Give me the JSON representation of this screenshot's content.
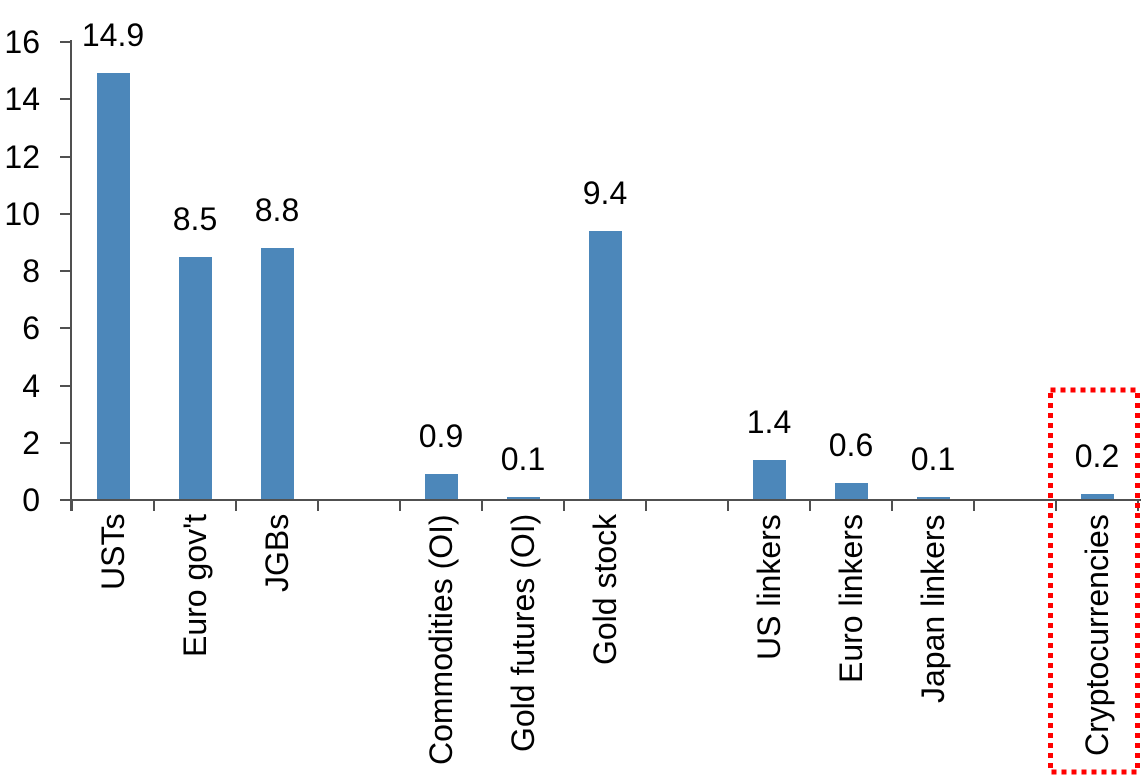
{
  "chart_data": {
    "type": "bar",
    "title": "",
    "xlabel": "",
    "ylabel": "",
    "grid": false,
    "legend": null,
    "ylim": [
      0,
      16
    ],
    "y_ticks": [
      0,
      2,
      4,
      6,
      8,
      10,
      12,
      14,
      16
    ],
    "bar_color": "#4C87BA",
    "axis_color": "#505050",
    "text_color": "#000000",
    "categories": [
      "USTs",
      "Euro gov't",
      "JGBs",
      "Commodities (OI)",
      "Gold futures (OI)",
      "Gold stock",
      "US linkers",
      "Euro linkers",
      "Japan linkers",
      "Cryptocurrencies"
    ],
    "values": [
      14.9,
      8.5,
      8.8,
      0.9,
      0.1,
      9.4,
      1.4,
      0.6,
      0.1,
      0.2
    ],
    "groups": [
      {
        "items": [
          {
            "label": "USTs",
            "value": 14.9
          },
          {
            "label": "Euro gov't",
            "value": 8.5
          },
          {
            "label": "JGBs",
            "value": 8.8
          }
        ]
      },
      {
        "items": [
          {
            "label": "Commodities (OI)",
            "value": 0.9
          },
          {
            "label": "Gold futures (OI)",
            "value": 0.1
          },
          {
            "label": "Gold stock",
            "value": 9.4
          }
        ]
      },
      {
        "items": [
          {
            "label": "US linkers",
            "value": 1.4
          },
          {
            "label": "Euro linkers",
            "value": 0.6
          },
          {
            "label": "Japan linkers",
            "value": 0.1
          }
        ]
      },
      {
        "items": [
          {
            "label": "Cryptocurrencies",
            "value": 0.2
          }
        ]
      }
    ],
    "highlight": {
      "category": "Cryptocurrencies",
      "style": "dotted-box",
      "color": "#FF0000"
    }
  }
}
